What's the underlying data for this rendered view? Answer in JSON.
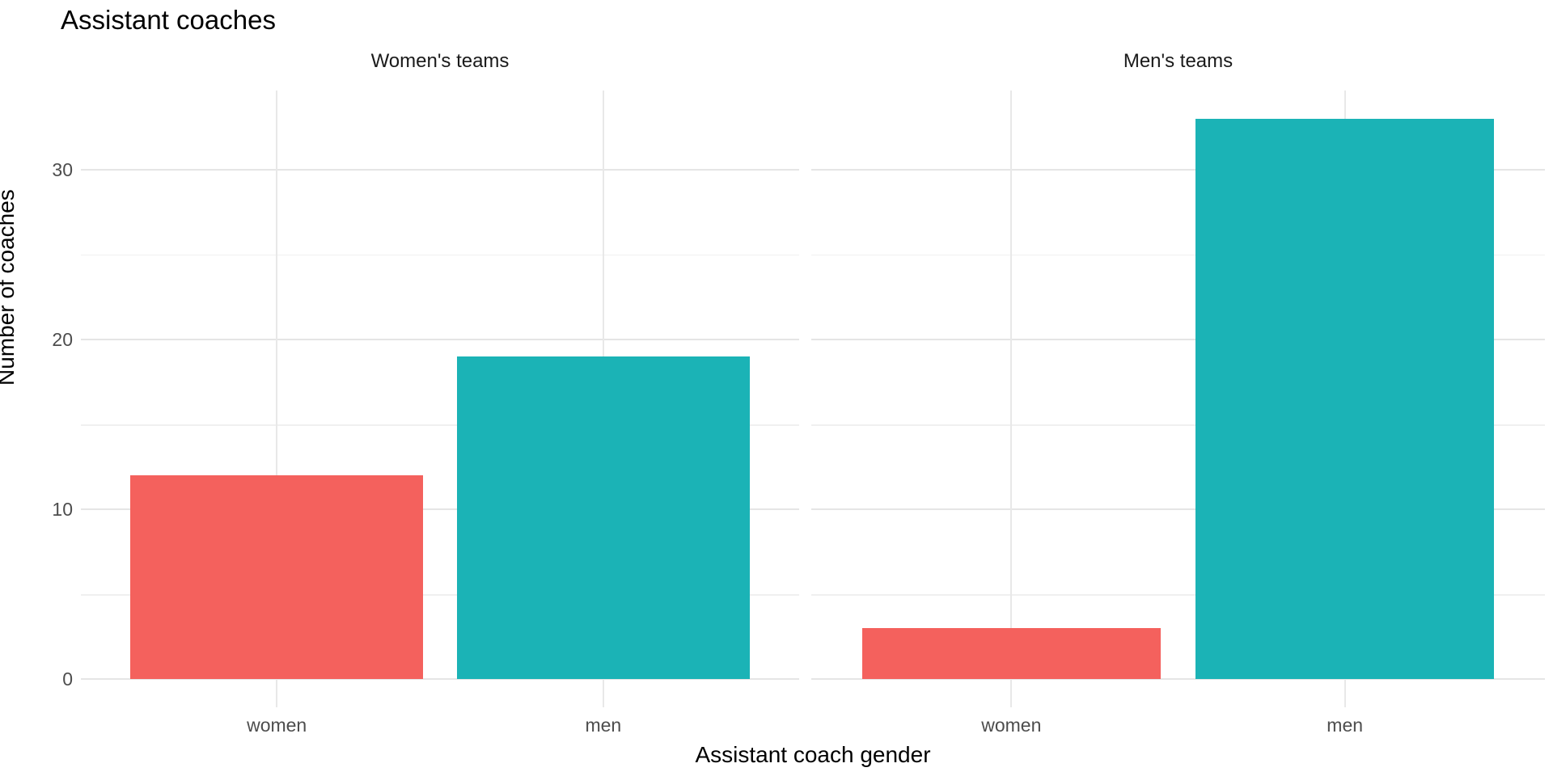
{
  "title": "Assistant coaches",
  "colors": {
    "bar_women": "#F4615D",
    "bar_men": "#1BB3B6",
    "grid_major": "#E5E5E5",
    "grid_minor": "#F0F0F0",
    "axis_text": "#4D4D4D",
    "title_text": "#000000",
    "background": "#FFFFFF"
  },
  "chart_data": {
    "type": "bar",
    "title": "Assistant coaches",
    "xlabel": "Assistant coach gender",
    "ylabel": "Number of coaches",
    "categories": [
      "women",
      "men"
    ],
    "facets": [
      {
        "label": "Women's teams",
        "categories": [
          "women",
          "men"
        ],
        "values": [
          12,
          19
        ]
      },
      {
        "label": "Men's teams",
        "categories": [
          "women",
          "men"
        ],
        "values": [
          3,
          33
        ]
      }
    ],
    "series_colors": {
      "women": "#F4615D",
      "men": "#1BB3B6"
    },
    "y_ticks": [
      0,
      10,
      20,
      30
    ],
    "y_minor_ticks": [
      5,
      15,
      25
    ],
    "ylim": [
      -1.65,
      34.65
    ],
    "grid": true,
    "legend": "none",
    "facet_layout": "columns",
    "theme": "minimal"
  }
}
